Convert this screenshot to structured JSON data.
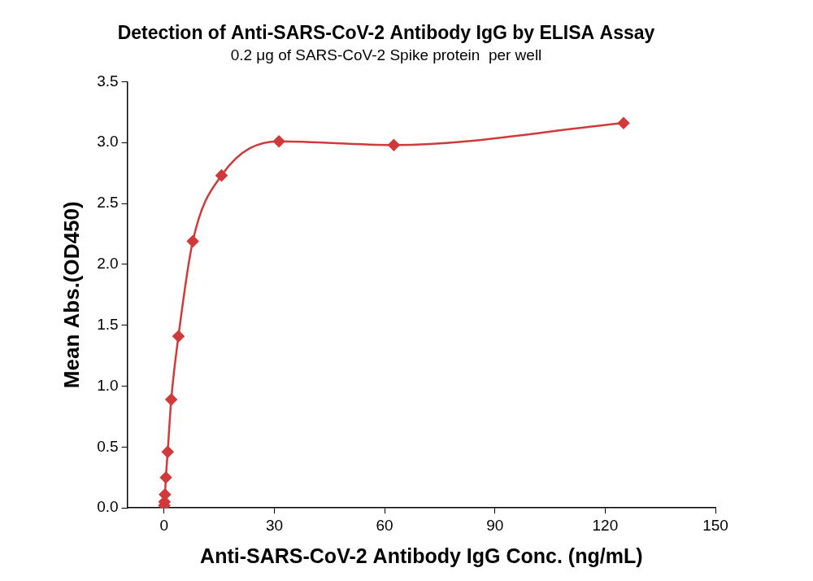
{
  "chart_data": {
    "type": "scatter",
    "title": "Detection of Anti-SARS-CoV-2 Antibody IgG by ELISA Assay",
    "subtitle": "0.2 μg of SARS-CoV-2 Spike protein  per well",
    "x_label": "Anti-SARS-CoV-2 Antibody IgG Conc. (ng/mL)",
    "y_label": "Mean Abs.(OD450)",
    "x": [
      0.06,
      0.12,
      0.24,
      0.49,
      0.98,
      1.95,
      3.91,
      7.81,
      15.63,
      31.25,
      62.5,
      125
    ],
    "values": [
      0.02,
      0.05,
      0.11,
      0.25,
      0.46,
      0.89,
      1.41,
      2.19,
      2.73,
      3.01,
      2.98,
      3.16
    ],
    "color": "#d03a3a",
    "marker": "diamond",
    "line_style": "solid",
    "xlim": [
      -10,
      150
    ],
    "xticks": [
      0,
      30,
      60,
      90,
      120,
      150
    ],
    "ylim": [
      0,
      3.5
    ],
    "yticks": [
      {
        "value": 0,
        "label": "0.0"
      },
      {
        "value": 0.5,
        "label": "0.5"
      },
      {
        "value": 1,
        "label": "1.0"
      },
      {
        "value": 1.5,
        "label": "1.5"
      },
      {
        "value": 2,
        "label": "2.0"
      },
      {
        "value": 2.5,
        "label": "2.5"
      },
      {
        "value": 3,
        "label": "3.0"
      },
      {
        "value": 3.5,
        "label": "3.5"
      }
    ],
    "grid": false
  }
}
